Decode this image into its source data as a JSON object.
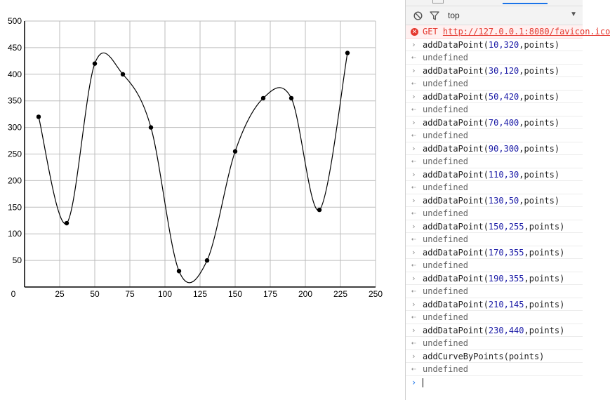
{
  "chart_data": {
    "type": "line",
    "xlim": [
      0,
      250
    ],
    "ylim": [
      0,
      500
    ],
    "x_ticks": [
      25,
      50,
      75,
      100,
      125,
      150,
      175,
      200,
      225,
      250
    ],
    "y_ticks": [
      50,
      100,
      150,
      200,
      250,
      300,
      350,
      400,
      450,
      500
    ],
    "origin_label": "0",
    "grid": true,
    "smoothing": "catmull-rom",
    "x": [
      10,
      30,
      50,
      70,
      90,
      110,
      130,
      150,
      170,
      190,
      210,
      230
    ],
    "y": [
      320,
      120,
      420,
      400,
      300,
      30,
      50,
      255,
      355,
      355,
      145,
      440
    ],
    "line_color": "#000000",
    "grid_color": "#bdbdbd"
  },
  "devtools": {
    "context": "top",
    "console": [
      {
        "type": "error",
        "method": "GET",
        "url": "http://127.0.0.1:8080/favicon.ico"
      },
      {
        "type": "cmd",
        "fn": "addDataPoint(",
        "args": "10,320",
        "tail": ",points)"
      },
      {
        "type": "out",
        "text": "undefined"
      },
      {
        "type": "cmd",
        "fn": "addDataPoint(",
        "args": "30,120",
        "tail": ",points)"
      },
      {
        "type": "out",
        "text": "undefined"
      },
      {
        "type": "cmd",
        "fn": "addDataPoint(",
        "args": "50,420",
        "tail": ",points)"
      },
      {
        "type": "out",
        "text": "undefined"
      },
      {
        "type": "cmd",
        "fn": "addDataPoint(",
        "args": "70,400",
        "tail": ",points)"
      },
      {
        "type": "out",
        "text": "undefined"
      },
      {
        "type": "cmd",
        "fn": "addDataPoint(",
        "args": "90,300",
        "tail": ",points)"
      },
      {
        "type": "out",
        "text": "undefined"
      },
      {
        "type": "cmd",
        "fn": "addDataPoint(",
        "args": "110,30",
        "tail": ",points)"
      },
      {
        "type": "out",
        "text": "undefined"
      },
      {
        "type": "cmd",
        "fn": "addDataPoint(",
        "args": "130,50",
        "tail": ",points)"
      },
      {
        "type": "out",
        "text": "undefined"
      },
      {
        "type": "cmd",
        "fn": "addDataPoint(",
        "args": "150,255",
        "tail": ",points)"
      },
      {
        "type": "out",
        "text": "undefined"
      },
      {
        "type": "cmd",
        "fn": "addDataPoint(",
        "args": "170,355",
        "tail": ",points)"
      },
      {
        "type": "out",
        "text": "undefined"
      },
      {
        "type": "cmd",
        "fn": "addDataPoint(",
        "args": "190,355",
        "tail": ",points)"
      },
      {
        "type": "out",
        "text": "undefined"
      },
      {
        "type": "cmd",
        "fn": "addDataPoint(",
        "args": "210,145",
        "tail": ",points)"
      },
      {
        "type": "out",
        "text": "undefined"
      },
      {
        "type": "cmd",
        "fn": "addDataPoint(",
        "args": "230,440",
        "tail": ",points)"
      },
      {
        "type": "out",
        "text": "undefined"
      },
      {
        "type": "cmd",
        "fn": "addCurveByPoints(points)",
        "args": "",
        "tail": ""
      },
      {
        "type": "out",
        "text": "undefined"
      }
    ]
  }
}
